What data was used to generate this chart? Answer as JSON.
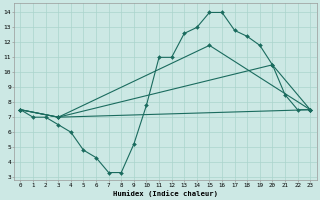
{
  "xlabel": "Humidex (Indice chaleur)",
  "bg_color": "#cce8e4",
  "line_color": "#1a6b5e",
  "grid_color": "#aad4cc",
  "xlim": [
    -0.5,
    23.5
  ],
  "ylim": [
    2.8,
    14.6
  ],
  "xticks": [
    0,
    1,
    2,
    3,
    4,
    5,
    6,
    7,
    8,
    9,
    10,
    11,
    12,
    13,
    14,
    15,
    16,
    17,
    18,
    19,
    20,
    21,
    22,
    23
  ],
  "yticks": [
    3,
    4,
    5,
    6,
    7,
    8,
    9,
    10,
    11,
    12,
    13,
    14
  ],
  "line1_x": [
    0,
    1,
    2,
    3,
    4,
    5,
    6,
    7,
    8,
    9,
    10,
    11,
    12,
    13,
    14,
    15,
    16,
    17,
    18,
    19,
    20,
    21,
    22,
    23
  ],
  "line1_y": [
    7.5,
    7.0,
    7.0,
    6.5,
    6.0,
    4.8,
    4.3,
    3.3,
    3.3,
    5.2,
    7.8,
    11.0,
    11.0,
    12.6,
    13.0,
    14.0,
    14.0,
    12.8,
    12.4,
    11.8,
    10.5,
    8.5,
    7.5,
    7.5
  ],
  "line2_x": [
    0,
    3,
    23
  ],
  "line2_y": [
    7.5,
    7.0,
    7.5
  ],
  "line3_x": [
    0,
    3,
    20,
    23
  ],
  "line3_y": [
    7.5,
    7.0,
    10.5,
    7.5
  ],
  "line4_x": [
    0,
    3,
    15,
    23
  ],
  "line4_y": [
    7.5,
    7.0,
    11.8,
    7.5
  ]
}
